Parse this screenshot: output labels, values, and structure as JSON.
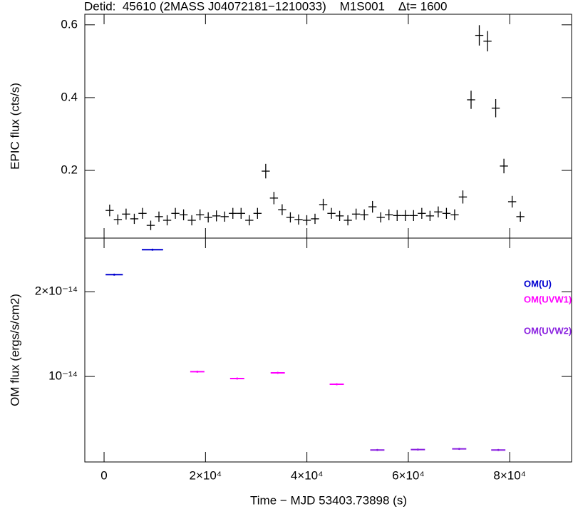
{
  "chart_data": [
    {
      "type": "errorbar",
      "title": "Detid:  45610 (2MASS J04072181−1210033)    M1S001    Δt= 1600",
      "ylabel": "EPIC flux (cts/s)",
      "xlim": [
        -3800,
        92200
      ],
      "ylim": [
        0.014,
        0.629
      ],
      "yticks": [
        0.2,
        0.4,
        0.6
      ],
      "color": "#000000",
      "x": [
        1100,
        2720,
        4340,
        5960,
        7580,
        9200,
        10820,
        12440,
        14060,
        15680,
        17300,
        18920,
        20540,
        22160,
        23780,
        25400,
        27020,
        28640,
        30260,
        31880,
        33500,
        35120,
        36740,
        38360,
        39980,
        41600,
        43220,
        44840,
        46460,
        48080,
        49700,
        51320,
        52940,
        54560,
        56180,
        57800,
        59420,
        61040,
        62660,
        64280,
        65900,
        67520,
        69140,
        70760,
        72380,
        74000,
        75620,
        77240,
        78860,
        80480,
        82100
      ],
      "values": [
        0.09,
        0.065,
        0.08,
        0.067,
        0.082,
        0.049,
        0.073,
        0.063,
        0.082,
        0.078,
        0.063,
        0.078,
        0.071,
        0.075,
        0.073,
        0.082,
        0.082,
        0.063,
        0.082,
        0.198,
        0.124,
        0.092,
        0.071,
        0.065,
        0.063,
        0.067,
        0.106,
        0.082,
        0.075,
        0.063,
        0.08,
        0.078,
        0.1,
        0.071,
        0.078,
        0.076,
        0.076,
        0.076,
        0.082,
        0.075,
        0.086,
        0.082,
        0.078,
        0.127,
        0.394,
        0.571,
        0.555,
        0.371,
        0.212,
        0.114,
        0.073
      ],
      "yerr": [
        0.016,
        0.014,
        0.015,
        0.014,
        0.015,
        0.013,
        0.014,
        0.014,
        0.015,
        0.015,
        0.014,
        0.015,
        0.014,
        0.015,
        0.014,
        0.015,
        0.015,
        0.014,
        0.015,
        0.02,
        0.017,
        0.015,
        0.014,
        0.014,
        0.014,
        0.014,
        0.016,
        0.015,
        0.014,
        0.014,
        0.015,
        0.015,
        0.016,
        0.014,
        0.015,
        0.015,
        0.015,
        0.015,
        0.015,
        0.014,
        0.015,
        0.015,
        0.015,
        0.018,
        0.025,
        0.028,
        0.028,
        0.025,
        0.02,
        0.016,
        0.014
      ],
      "xerr": 800
    },
    {
      "type": "errorbar",
      "log_scale": true,
      "xlabel": "Time − MJD 53403.73898 (s)",
      "ylabel": "OM flux (ergs/s/cm2)",
      "xlim": [
        -3800,
        92200
      ],
      "ylim": [
        4.97e-15,
        3.1e-14
      ],
      "yticks": [
        {
          "value": 1e-14,
          "label": "10⁻¹⁴"
        },
        {
          "value": 2e-14,
          "label": "2×10⁻¹⁴"
        }
      ],
      "xticks": [
        0,
        {
          "value": 20000,
          "label": "2×10⁴"
        },
        {
          "value": 40000,
          "label": "4×10⁴"
        },
        {
          "value": 60000,
          "label": "6×10⁴"
        },
        {
          "value": 80000,
          "label": "8×10⁴"
        }
      ],
      "series": [
        {
          "name": "OM(U)",
          "color": "#0000d0",
          "x": [
            2000,
            9540
          ],
          "values": [
            2.3e-14,
            2.82e-14
          ],
          "xerr": [
            1700,
            2100
          ]
        },
        {
          "name": "OM(UVW1)",
          "color": "#ff00ff",
          "x": [
            18390,
            26250,
            34250,
            45890
          ],
          "values": [
            1.04e-14,
            9.83e-15,
            1.03e-14,
            9.38e-15
          ],
          "xerr": [
            1400,
            1400,
            1400,
            1400
          ]
        },
        {
          "name": "OM(UVW2)",
          "color": "#8a20e0",
          "x": [
            53890,
            61890,
            70040,
            77750
          ],
          "values": [
            5.48e-15,
            5.5e-15,
            5.53e-15,
            5.48e-15
          ],
          "xerr": [
            1400,
            1400,
            1400,
            1400
          ]
        }
      ]
    }
  ]
}
